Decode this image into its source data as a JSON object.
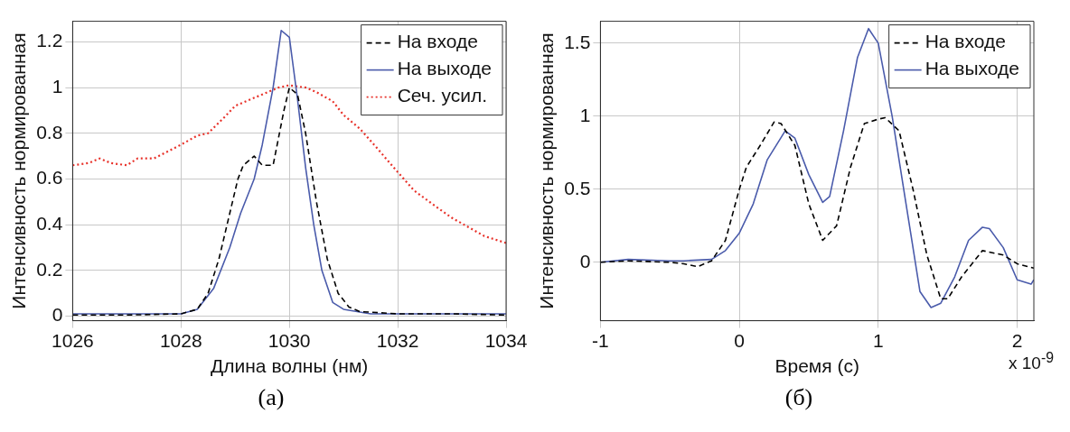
{
  "chart_data": [
    {
      "type": "line",
      "xlabel": "Длина волны (нм)",
      "ylabel": "Интенсивность нормированная",
      "xlim": [
        1026,
        1034
      ],
      "ylim": [
        -0.02,
        1.29
      ],
      "xticks": [
        1026,
        1028,
        1030,
        1032,
        1034
      ],
      "yticks": [
        0,
        0.2,
        0.4,
        0.6,
        0.8,
        1,
        1.2
      ],
      "grid": true,
      "legend": "top right",
      "annotations": [
        "(а)"
      ],
      "series": [
        {
          "name": "На входе",
          "color": "#000000",
          "line_style": "dashed",
          "x": [
            1026,
            1027,
            1028,
            1028.3,
            1028.5,
            1028.7,
            1028.9,
            1029.05,
            1029.15,
            1029.35,
            1029.5,
            1029.7,
            1029.8,
            1029.9,
            1030,
            1030.15,
            1030.3,
            1030.5,
            1030.7,
            1030.9,
            1031.1,
            1031.3,
            1032,
            1033,
            1034
          ],
          "values": [
            0.005,
            0.005,
            0.01,
            0.03,
            0.1,
            0.25,
            0.45,
            0.6,
            0.66,
            0.7,
            0.66,
            0.66,
            0.78,
            0.9,
            1.0,
            0.97,
            0.8,
            0.5,
            0.25,
            0.1,
            0.04,
            0.02,
            0.01,
            0.01,
            0.005
          ]
        },
        {
          "name": "На выходе",
          "color": "#4a5bab",
          "line_style": "solid",
          "x": [
            1026,
            1028,
            1028.3,
            1028.6,
            1028.9,
            1029.1,
            1029.35,
            1029.5,
            1029.7,
            1029.85,
            1030,
            1030.15,
            1030.3,
            1030.45,
            1030.6,
            1030.8,
            1031,
            1031.5,
            1034
          ],
          "values": [
            0.01,
            0.01,
            0.03,
            0.12,
            0.3,
            0.45,
            0.6,
            0.75,
            1.0,
            1.25,
            1.22,
            0.95,
            0.65,
            0.4,
            0.2,
            0.06,
            0.03,
            0.01,
            0.01
          ]
        },
        {
          "name": "Сеч. усил.",
          "color": "#e8322a",
          "line_style": "dotted",
          "x": [
            1026,
            1026.3,
            1026.5,
            1026.7,
            1027,
            1027.2,
            1027.5,
            1028,
            1028.3,
            1028.5,
            1028.8,
            1029,
            1029.5,
            1029.8,
            1030,
            1030.3,
            1030.5,
            1030.8,
            1031,
            1031.3,
            1031.6,
            1032,
            1032.3,
            1032.7,
            1033,
            1033.3,
            1033.6,
            1034
          ],
          "values": [
            0.66,
            0.67,
            0.69,
            0.67,
            0.66,
            0.69,
            0.69,
            0.75,
            0.79,
            0.8,
            0.87,
            0.92,
            0.97,
            1.0,
            1.01,
            1.0,
            0.98,
            0.94,
            0.88,
            0.82,
            0.74,
            0.63,
            0.55,
            0.48,
            0.43,
            0.39,
            0.35,
            0.32
          ]
        }
      ]
    },
    {
      "type": "line",
      "xlabel": "Время (с)",
      "ylabel": "Интенсивность нормированная",
      "xlim": [
        -1,
        2.12
      ],
      "ylim": [
        -0.4,
        1.65
      ],
      "xticks": [
        -1,
        0,
        1,
        2
      ],
      "yticks": [
        0,
        0.5,
        1,
        1.5
      ],
      "grid": true,
      "legend": "top right",
      "annotations": [
        "x 10$^{-9}$",
        "(б)"
      ],
      "series": [
        {
          "name": "На входе",
          "color": "#000000",
          "line_style": "dashed",
          "x": [
            -1,
            -0.8,
            -0.5,
            -0.4,
            -0.3,
            -0.2,
            -0.1,
            0,
            0.05,
            0.15,
            0.25,
            0.3,
            0.4,
            0.5,
            0.6,
            0.7,
            0.8,
            0.9,
            1.0,
            1.05,
            1.15,
            1.25,
            1.35,
            1.45,
            1.5,
            1.6,
            1.75,
            1.9,
            2.0,
            2.12
          ],
          "values": [
            0,
            0.01,
            0,
            -0.01,
            -0.03,
            0.01,
            0.15,
            0.5,
            0.65,
            0.8,
            0.96,
            0.95,
            0.8,
            0.4,
            0.15,
            0.25,
            0.65,
            0.95,
            0.98,
            0.99,
            0.9,
            0.5,
            0.05,
            -0.25,
            -0.25,
            -0.1,
            0.08,
            0.05,
            -0.01,
            -0.04
          ]
        },
        {
          "name": "На выходе",
          "color": "#4a5bab",
          "line_style": "solid",
          "x": [
            -1,
            -0.8,
            -0.5,
            -0.4,
            -0.2,
            -0.1,
            0,
            0.1,
            0.2,
            0.33,
            0.4,
            0.5,
            0.6,
            0.65,
            0.75,
            0.85,
            0.93,
            1.0,
            1.1,
            1.2,
            1.3,
            1.38,
            1.45,
            1.55,
            1.65,
            1.75,
            1.8,
            1.9,
            2.0,
            2.1,
            2.12
          ],
          "values": [
            0,
            0.02,
            0.01,
            0.01,
            0.02,
            0.08,
            0.2,
            0.4,
            0.7,
            0.9,
            0.85,
            0.6,
            0.41,
            0.45,
            0.9,
            1.4,
            1.6,
            1.5,
            1.0,
            0.4,
            -0.2,
            -0.31,
            -0.28,
            -0.1,
            0.15,
            0.24,
            0.23,
            0.1,
            -0.12,
            -0.15,
            -0.12
          ]
        }
      ]
    }
  ]
}
